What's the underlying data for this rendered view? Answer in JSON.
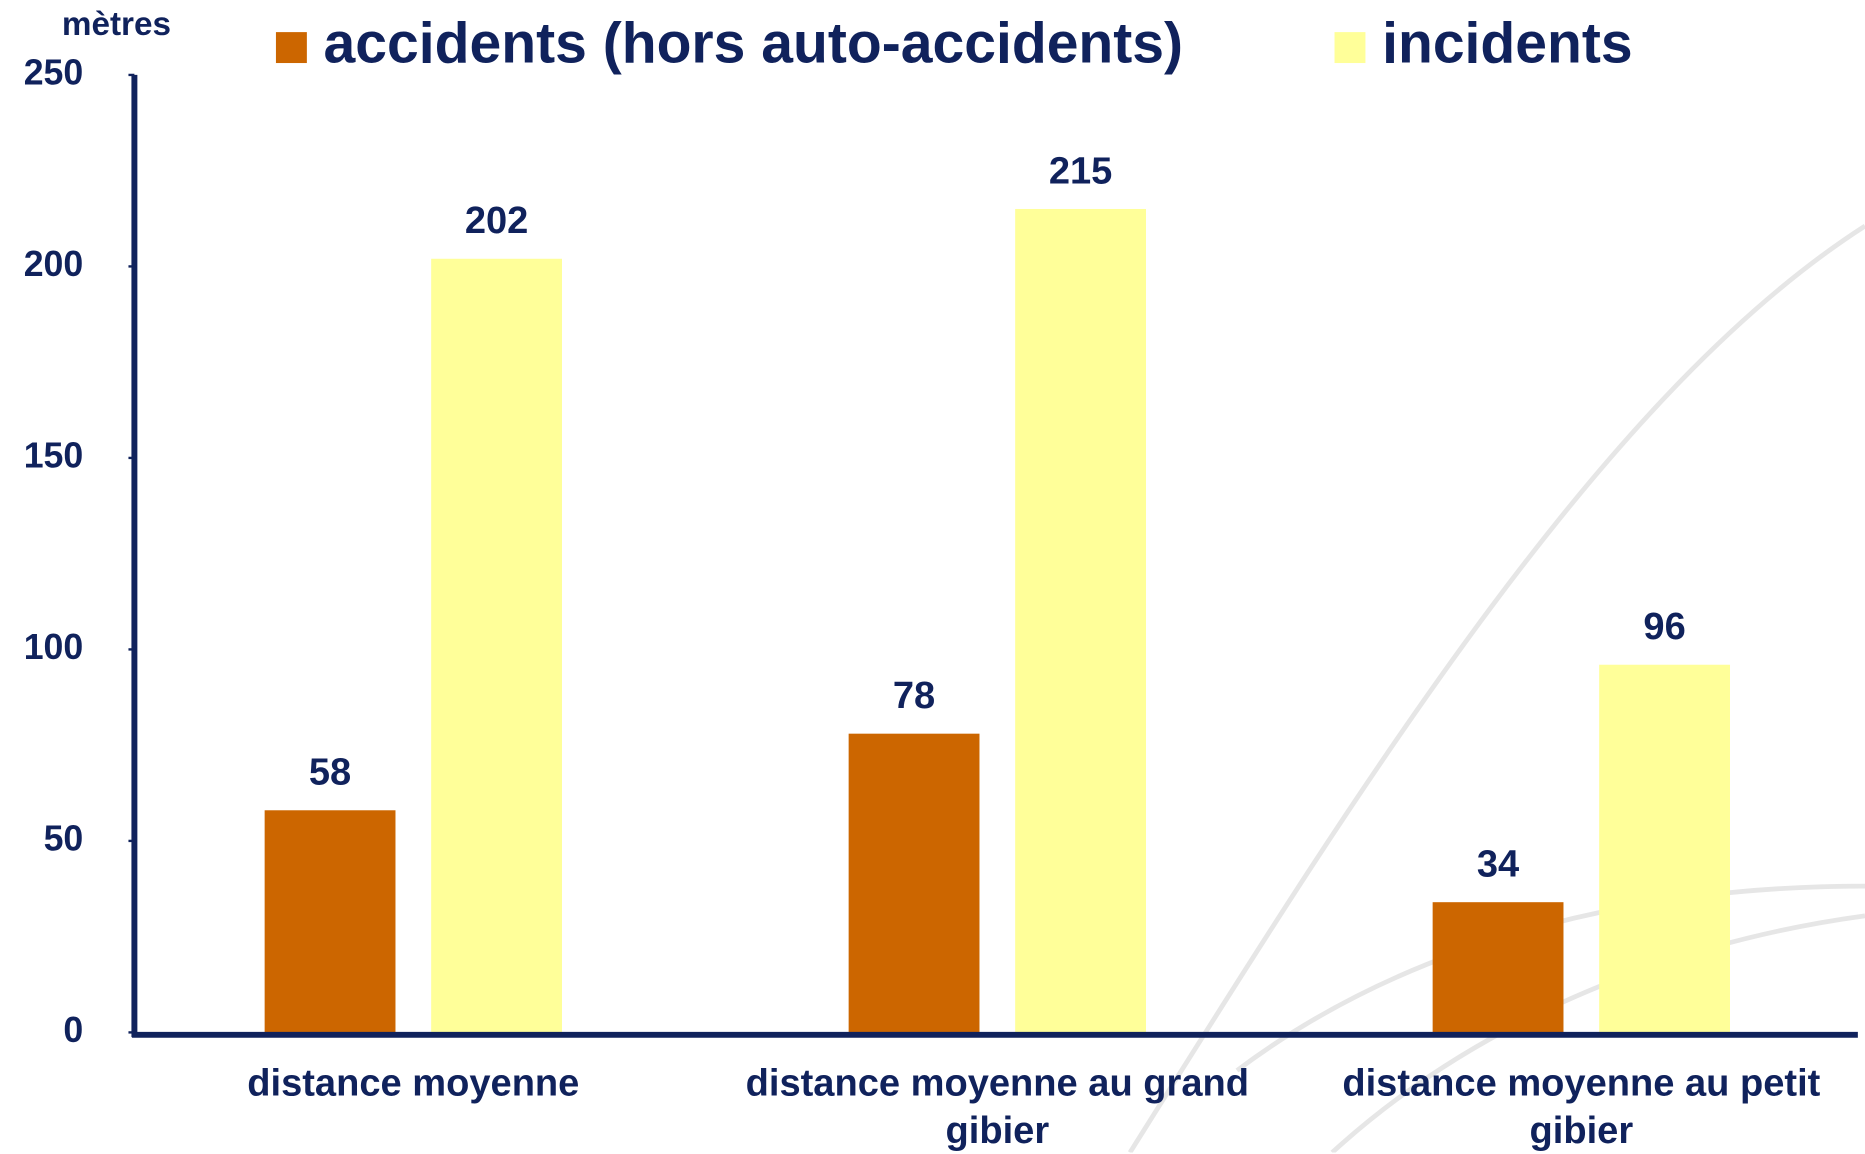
{
  "chart_data": {
    "type": "bar",
    "y_label": "mètres",
    "categories": [
      "distance moyenne",
      "distance moyenne au grand gibier",
      "distance moyenne au petit gibier"
    ],
    "series": [
      {
        "name": "accidents (hors auto-accidents)",
        "color": "#cc6600",
        "values": [
          58,
          78,
          34
        ]
      },
      {
        "name": "incidents",
        "color": "#ffff99",
        "values": [
          202,
          215,
          96
        ]
      }
    ],
    "ylim": [
      0,
      250
    ],
    "yticks": [
      0,
      50,
      100,
      150,
      200,
      250
    ]
  }
}
